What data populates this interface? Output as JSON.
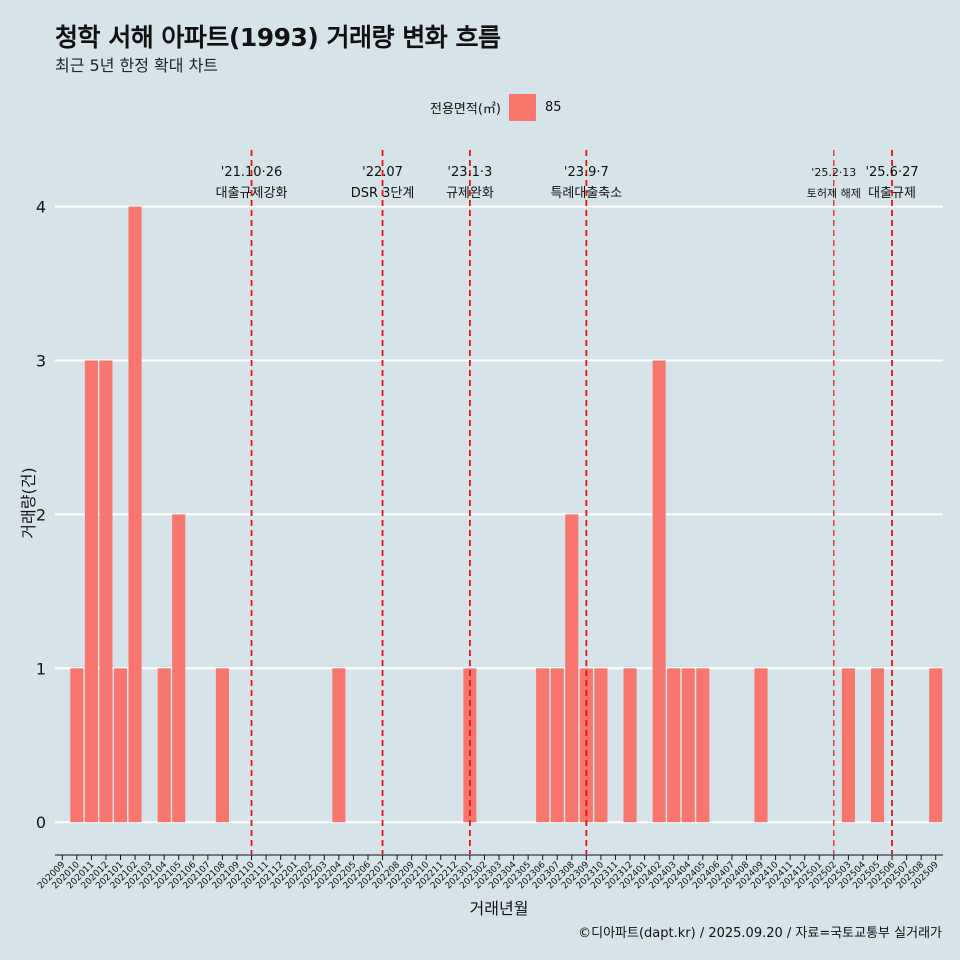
{
  "title": "청학 서해 아파트(1993) 거래량 변화 흐름",
  "subtitle": "최근 5년 한정 확대 차트",
  "legend": {
    "title": "전용면적(㎡)",
    "item": "85",
    "color": "#f8766d"
  },
  "footer": "©디아파트(dapt.kr) / 2025.09.20 / 자료=국토교통부 실거래가",
  "chart_data": {
    "type": "bar",
    "xlabel": "거래년월",
    "ylabel": "거래량(건)",
    "ylim": [
      -0.2,
      4.4
    ],
    "yticks": [
      0,
      1,
      2,
      3,
      4
    ],
    "grid": true,
    "categories": [
      "202009",
      "202010",
      "202011",
      "202012",
      "202101",
      "202102",
      "202103",
      "202104",
      "202105",
      "202106",
      "202107",
      "202108",
      "202109",
      "202110",
      "202111",
      "202112",
      "202201",
      "202202",
      "202203",
      "202204",
      "202205",
      "202206",
      "202207",
      "202208",
      "202209",
      "202210",
      "202211",
      "202212",
      "202301",
      "202302",
      "202303",
      "202304",
      "202305",
      "202306",
      "202307",
      "202308",
      "202309",
      "202310",
      "202311",
      "202312",
      "202401",
      "202402",
      "202403",
      "202404",
      "202405",
      "202406",
      "202407",
      "202408",
      "202409",
      "202410",
      "202411",
      "202412",
      "202501",
      "202502",
      "202503",
      "202504",
      "202505",
      "202506",
      "202507",
      "202508",
      "202509"
    ],
    "series": [
      {
        "name": "85",
        "color": "#f8766d",
        "values": [
          0,
          1,
          3,
          3,
          1,
          4,
          0,
          1,
          2,
          0,
          0,
          1,
          0,
          0,
          0,
          0,
          0,
          0,
          0,
          1,
          0,
          0,
          0,
          0,
          0,
          0,
          0,
          0,
          1,
          0,
          0,
          0,
          0,
          1,
          1,
          2,
          1,
          1,
          0,
          1,
          0,
          3,
          1,
          1,
          1,
          0,
          0,
          0,
          1,
          0,
          0,
          0,
          0,
          0,
          1,
          0,
          1,
          0,
          0,
          0,
          1
        ]
      }
    ],
    "annotations": [
      {
        "x": "202110",
        "date": "'21.10·26",
        "label": "대출규제강화",
        "small": false
      },
      {
        "x": "202207",
        "date": "'22.07",
        "label": "DSR 3단계",
        "small": false
      },
      {
        "x": "202301",
        "date": "'23.1·3",
        "label": "규제완화",
        "small": false
      },
      {
        "x": "202309",
        "date": "'23.9·7",
        "label": "특례대출축소",
        "small": false
      },
      {
        "x": "202502",
        "date": "'25.2·13",
        "label": "토허제 해제",
        "small": true
      },
      {
        "x": "202506",
        "date": "'25.6·27",
        "label": "대출규제",
        "small": false
      }
    ]
  }
}
